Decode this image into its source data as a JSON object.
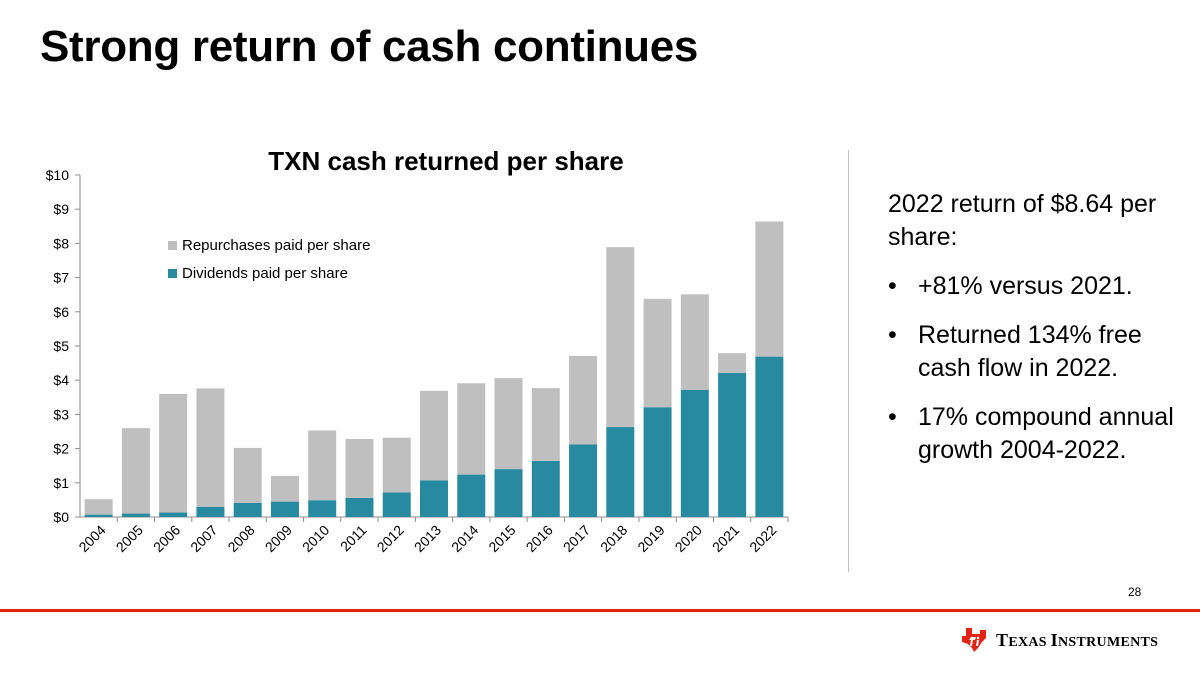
{
  "slide": {
    "title": "Strong return of cash continues",
    "page_number": "28"
  },
  "colors": {
    "repurchases": "#bfbfbf",
    "dividends": "#278aa0",
    "accent": "#e42313"
  },
  "chart_data": {
    "type": "bar",
    "stacked": true,
    "title": "TXN cash returned per share",
    "xlabel": "",
    "ylabel": "",
    "ylim": [
      0,
      10
    ],
    "y_ticks": [
      "$0",
      "$1",
      "$2",
      "$3",
      "$4",
      "$5",
      "$6",
      "$7",
      "$8",
      "$9",
      "$10"
    ],
    "categories": [
      "2004",
      "2005",
      "2006",
      "2007",
      "2008",
      "2009",
      "2010",
      "2011",
      "2012",
      "2013",
      "2014",
      "2015",
      "2016",
      "2017",
      "2018",
      "2019",
      "2020",
      "2021",
      "2022"
    ],
    "series": [
      {
        "name": "Dividends paid per share",
        "values": [
          0.07,
          0.1,
          0.13,
          0.3,
          0.41,
          0.45,
          0.49,
          0.56,
          0.72,
          1.07,
          1.24,
          1.4,
          1.64,
          2.12,
          2.63,
          3.21,
          3.72,
          4.21,
          4.69
        ]
      },
      {
        "name": "Repurchases paid per share",
        "values": [
          0.45,
          2.5,
          3.47,
          3.46,
          1.61,
          0.75,
          2.04,
          1.72,
          1.6,
          2.62,
          2.67,
          2.66,
          2.13,
          2.59,
          5.26,
          3.17,
          2.79,
          0.58,
          3.95
        ]
      }
    ],
    "legend": {
      "position": "top-left",
      "order": [
        "Repurchases paid per share",
        "Dividends paid per share"
      ]
    }
  },
  "sidebar": {
    "heading": "2022 return of $8.64 per share:",
    "bullet_char": "•",
    "bullets": [
      "+81% versus 2021.",
      "Returned 134% free cash flow in 2022.",
      "17% compound annual growth 2004-2022."
    ]
  },
  "logo": {
    "text_big_1": "T",
    "text_small_1": "EXAS ",
    "text_big_2": "I",
    "text_small_2": "NSTRUMENTS"
  }
}
